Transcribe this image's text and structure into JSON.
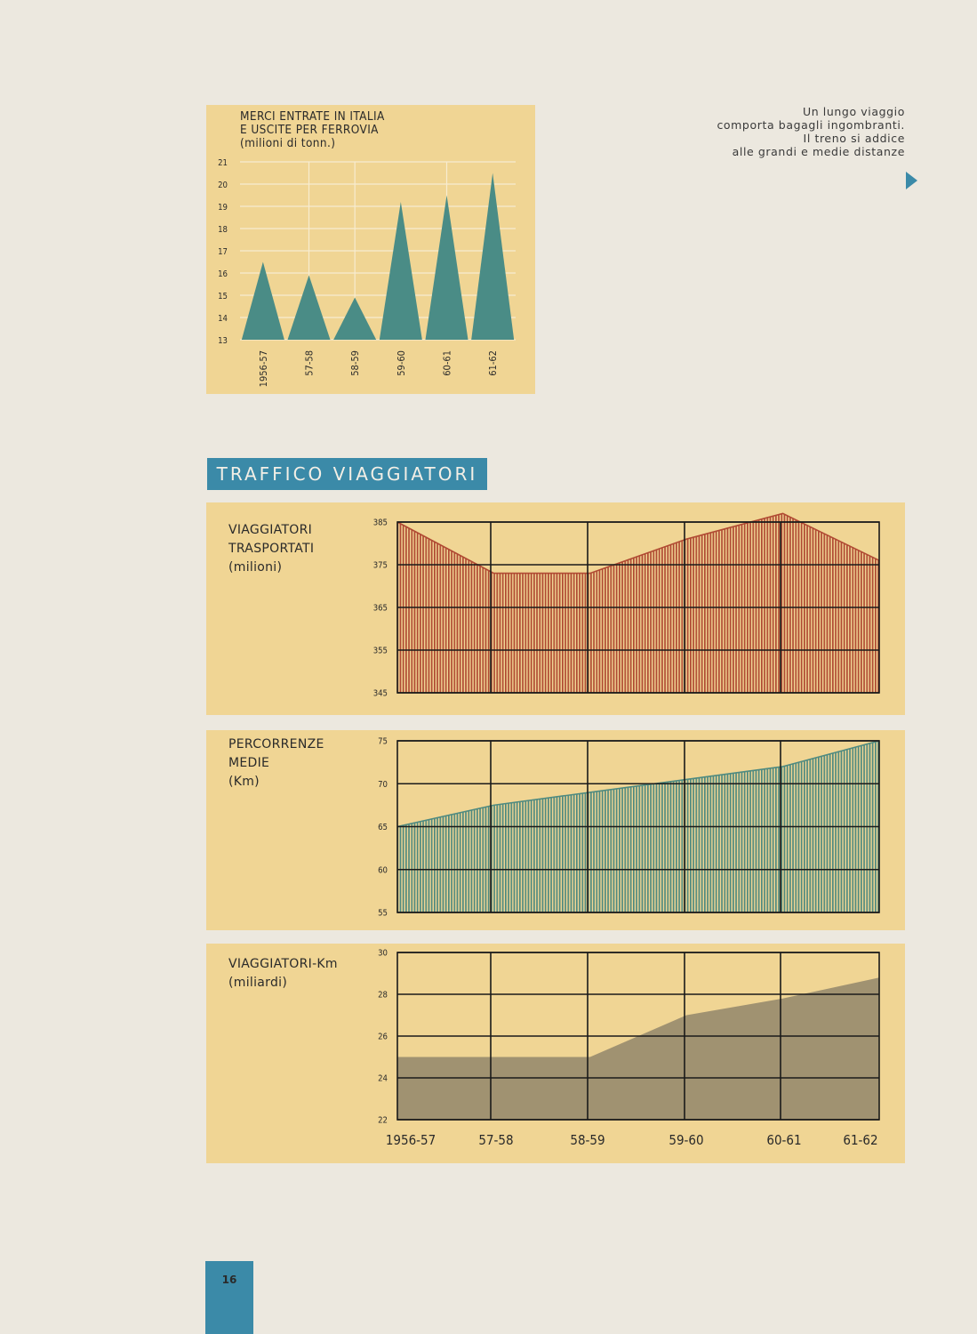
{
  "caption": {
    "lines": [
      "Un lungo viaggio",
      "comporta bagagli ingombranti.",
      "Il treno si addice",
      "alle grandi e medie distanze"
    ]
  },
  "section_title": "TRAFFICO VIAGGIATORI",
  "page_number": "16",
  "colors": {
    "panel": "#f0d594",
    "accent_blue": "#3b8aa8",
    "triangle_fill": "#4a8c86",
    "red_bars": "#b04a33",
    "green_bars": "#4f8a80",
    "olive_area": "#a09271",
    "grid": "#1a1a1a",
    "grid_light": "#f7ecd0"
  },
  "chart_data": [
    {
      "id": "merci",
      "type": "area",
      "mark": "triangle",
      "title_lines": [
        "MERCI ENTRATE IN ITALIA",
        "E USCITE PER FERROVIA",
        "(milioni di tonn.)"
      ],
      "categories": [
        "1956-57",
        "57-58",
        "58-59",
        "59-60",
        "60-61",
        "61-62"
      ],
      "values": [
        16.5,
        15.9,
        14.9,
        19.2,
        19.5,
        20.5
      ],
      "ylim": [
        13,
        21
      ],
      "yticks": [
        13,
        14,
        15,
        16,
        17,
        18,
        19,
        20,
        21
      ],
      "grid": true
    },
    {
      "id": "viaggiatori",
      "type": "area",
      "label_lines": [
        "VIAGGIATORI",
        "TRASPORTATI",
        "(milioni)"
      ],
      "categories": [
        "1956-57",
        "57-58",
        "58-59",
        "59-60",
        "60-61",
        "61-62"
      ],
      "values": [
        385,
        373,
        373,
        381,
        387,
        376
      ],
      "ylim": [
        345,
        385
      ],
      "yticks": [
        385,
        375,
        365,
        355,
        345
      ],
      "grid": true
    },
    {
      "id": "percorrenze",
      "type": "area",
      "label_lines": [
        "PERCORRENZE",
        "MEDIE",
        "(Km)"
      ],
      "categories": [
        "1956-57",
        "57-58",
        "58-59",
        "59-60",
        "60-61",
        "61-62"
      ],
      "values": [
        65.0,
        67.5,
        69.0,
        70.5,
        72.0,
        75.0
      ],
      "ylim": [
        55,
        75
      ],
      "yticks": [
        75,
        70,
        65,
        60,
        55
      ],
      "grid": true
    },
    {
      "id": "viaggiatori-km",
      "type": "area",
      "label_lines": [
        "VIAGGIATORI-Km",
        "(miliardi)"
      ],
      "categories": [
        "1956-57",
        "57-58",
        "58-59",
        "59-60",
        "60-61",
        "61-62"
      ],
      "values": [
        25.0,
        25.0,
        25.0,
        27.0,
        27.8,
        28.8
      ],
      "ylim": [
        22,
        30
      ],
      "yticks": [
        30,
        28,
        26,
        24,
        22
      ],
      "xticklabels": [
        "1956-57",
        "57-58",
        "58-59",
        "59-60",
        "60-61",
        "61-62"
      ],
      "grid": true
    }
  ]
}
